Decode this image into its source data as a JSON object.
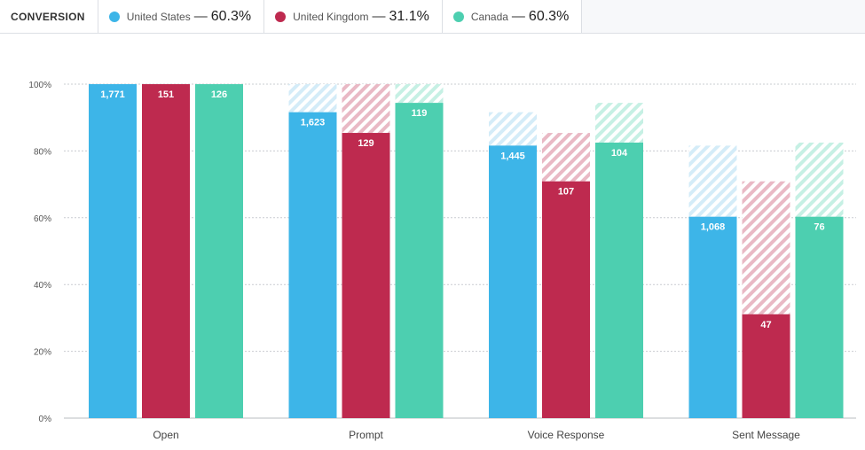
{
  "header": {
    "title": "CONVERSION",
    "legend": [
      {
        "name": "United States",
        "dash": "—",
        "value": "60.3%",
        "color": "#3db5e8"
      },
      {
        "name": "United Kingdom",
        "dash": "—",
        "value": "31.1%",
        "color": "#be2a4f"
      },
      {
        "name": "Canada",
        "dash": "—",
        "value": "60.3%",
        "color": "#4dcfb0"
      }
    ]
  },
  "chart_data": {
    "type": "bar",
    "categories": [
      "Open",
      "Prompt",
      "Voice Response",
      "Sent Message"
    ],
    "ylim": [
      0,
      100
    ],
    "yticks": [
      "0%",
      "20%",
      "40%",
      "60%",
      "80%",
      "100%"
    ],
    "grid": true,
    "series": [
      {
        "name": "United States",
        "color": "#3db5e8",
        "values": [
          100,
          91.6,
          81.6,
          60.3
        ],
        "previous": [
          100,
          100,
          91.6,
          81.6
        ],
        "labels": [
          "1,771",
          "1,623",
          "1,445",
          "1,068"
        ]
      },
      {
        "name": "United Kingdom",
        "color": "#be2a4f",
        "values": [
          100,
          85.4,
          70.9,
          31.1
        ],
        "previous": [
          100,
          100,
          85.4,
          70.9
        ],
        "labels": [
          "151",
          "129",
          "107",
          "47"
        ]
      },
      {
        "name": "Canada",
        "color": "#4dcfb0",
        "values": [
          100,
          94.4,
          82.5,
          60.3
        ],
        "previous": [
          100,
          100,
          94.4,
          82.5
        ],
        "labels": [
          "126",
          "119",
          "104",
          "76"
        ]
      }
    ]
  }
}
